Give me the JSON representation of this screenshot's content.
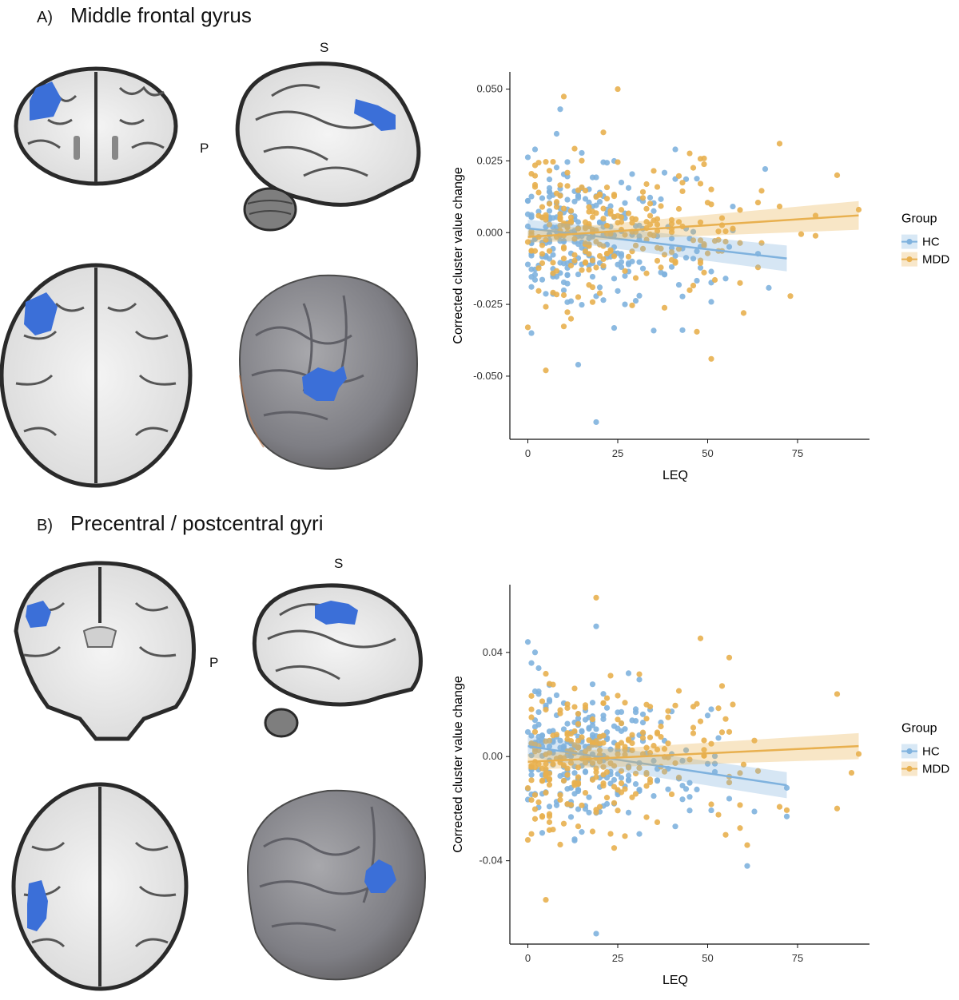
{
  "panels": [
    {
      "letter": "A)",
      "title": "Middle frontal gyrus",
      "orientation_labels": {
        "superior": "S",
        "posterior": "P"
      },
      "cluster_color": "#3b6fd8",
      "chart_data": {
        "type": "scatter",
        "xlabel": "LEQ",
        "ylabel": "Corrected cluster value change",
        "xlim": [
          -5,
          95
        ],
        "ylim": [
          -0.072,
          0.056
        ],
        "xticks": [
          0,
          25,
          50,
          75
        ],
        "xtick_labels": [
          "0",
          "25",
          "50",
          "75"
        ],
        "yticks": [
          -0.05,
          -0.025,
          0.0,
          0.025,
          0.05
        ],
        "ytick_labels": [
          "-0.050",
          "-0.025",
          "0.000",
          "0.025",
          "0.050"
        ],
        "grid": false,
        "legend": {
          "title": "Group",
          "placement": "right"
        },
        "series": [
          {
            "name": "HC",
            "color": "#7fb2de",
            "x_range": [
              0,
              72
            ],
            "spread": 0.0125,
            "fit": {
              "x": [
                0,
                72
              ],
              "y": [
                0.0015,
                -0.009
              ],
              "ci_start": 0.003,
              "ci_end": 0.0045
            },
            "extra_points": [
              [
                9,
                0.043
              ],
              [
                14,
                -0.046
              ],
              [
                19,
                -0.066
              ],
              [
                2,
                0.029
              ],
              [
                1,
                -0.035
              ]
            ]
          },
          {
            "name": "MDD",
            "color": "#e8b04f",
            "x_range": [
              0,
              92
            ],
            "spread": 0.0125,
            "fit": {
              "x": [
                0,
                92
              ],
              "y": [
                -0.0015,
                0.006
              ],
              "ci_start": 0.002,
              "ci_end": 0.005
            },
            "extra_points": [
              [
                25,
                0.05
              ],
              [
                5,
                -0.048
              ],
              [
                0,
                -0.033
              ],
              [
                70,
                0.031
              ],
              [
                86,
                0.02
              ],
              [
                92,
                0.008
              ],
              [
                60,
                -0.028
              ]
            ]
          }
        ]
      }
    },
    {
      "letter": "B)",
      "title": "Precentral / postcentral gyri",
      "orientation_labels": {
        "superior": "S",
        "posterior": "P"
      },
      "cluster_color": "#3b6fd8",
      "chart_data": {
        "type": "scatter",
        "xlabel": "LEQ",
        "ylabel": "Corrected cluster value change",
        "xlim": [
          -5,
          95
        ],
        "ylim": [
          -0.072,
          0.066
        ],
        "xticks": [
          0,
          25,
          50,
          75
        ],
        "xtick_labels": [
          "0",
          "25",
          "50",
          "75"
        ],
        "yticks": [
          -0.04,
          0.0,
          0.04
        ],
        "ytick_labels": [
          "-0.04",
          "0.00",
          "0.04"
        ],
        "grid": false,
        "legend": {
          "title": "Group",
          "placement": "right"
        },
        "series": [
          {
            "name": "HC",
            "color": "#7fb2de",
            "x_range": [
              0,
              72
            ],
            "spread": 0.013,
            "fit": {
              "x": [
                0,
                72
              ],
              "y": [
                0.004,
                -0.011
              ],
              "ci_start": 0.004,
              "ci_end": 0.005
            },
            "extra_points": [
              [
                0,
                0.044
              ],
              [
                2,
                0.04
              ],
              [
                19,
                0.05
              ],
              [
                19,
                -0.068
              ],
              [
                61,
                -0.042
              ],
              [
                72,
                -0.023
              ]
            ]
          },
          {
            "name": "MDD",
            "color": "#e8b04f",
            "x_range": [
              0,
              92
            ],
            "spread": 0.014,
            "fit": {
              "x": [
                0,
                92
              ],
              "y": [
                -0.002,
                0.004
              ],
              "ci_start": 0.003,
              "ci_end": 0.005
            },
            "extra_points": [
              [
                19,
                0.061
              ],
              [
                5,
                -0.055
              ],
              [
                0,
                -0.032
              ],
              [
                86,
                0.024
              ],
              [
                92,
                0.001
              ],
              [
                56,
                0.038
              ],
              [
                61,
                -0.034
              ]
            ]
          }
        ]
      }
    }
  ]
}
